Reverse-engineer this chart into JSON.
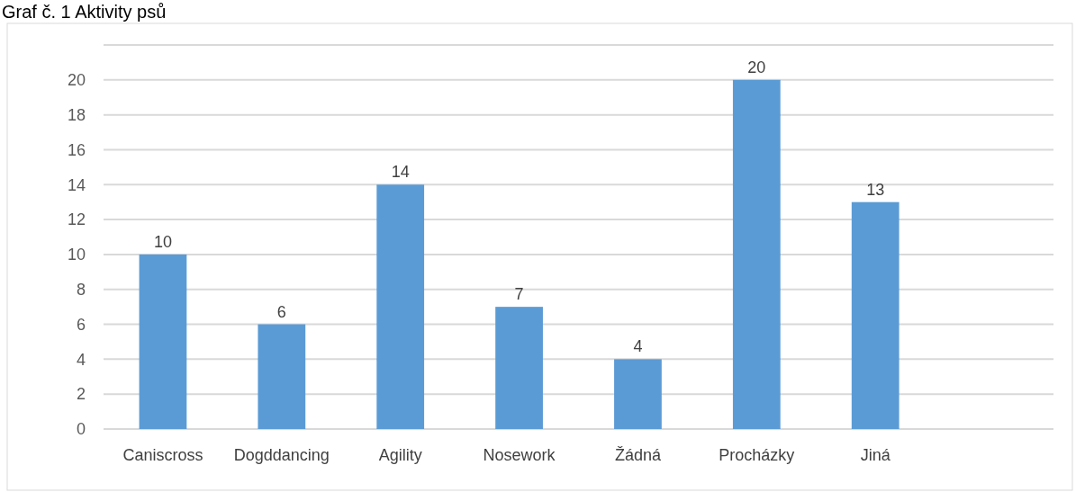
{
  "chart_data": {
    "type": "bar",
    "title": "Graf č. 1 Aktivity psů",
    "categories": [
      "Caniscross",
      "Dogddancing",
      "Agility",
      "Nosework",
      "Žádná",
      "Procházky",
      "Jiná",
      null
    ],
    "values": [
      10,
      6,
      14,
      7,
      4,
      20,
      13,
      null
    ],
    "color": "#5b9bd5",
    "ylim": [
      0,
      22
    ],
    "yticks": [
      0,
      2,
      4,
      6,
      8,
      10,
      12,
      14,
      16,
      18,
      20,
      {
        "value": 22,
        "label": null
      }
    ],
    "grid": "y",
    "data_labels": true
  }
}
